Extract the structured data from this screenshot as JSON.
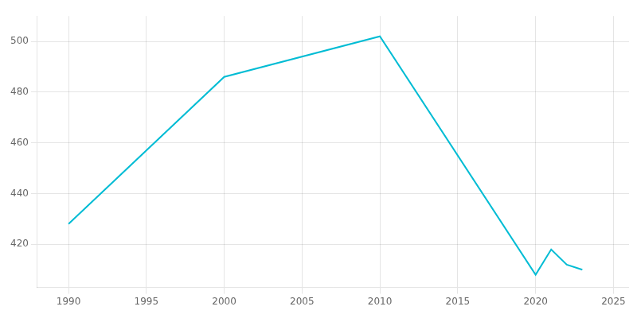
{
  "chart_data": {
    "type": "line",
    "x": [
      1990,
      2000,
      2010,
      2020,
      2021,
      2022,
      2023
    ],
    "values": [
      428,
      486,
      502,
      408,
      418,
      412,
      410
    ],
    "color": "#00bcd4",
    "xlim": [
      1988,
      2026
    ],
    "xticks": [
      1990,
      1995,
      2000,
      2005,
      2010,
      2015,
      2020,
      2025
    ],
    "ylim": [
      403,
      510
    ],
    "yticks": [
      420,
      440,
      460,
      480,
      500
    ],
    "grid": true
  }
}
